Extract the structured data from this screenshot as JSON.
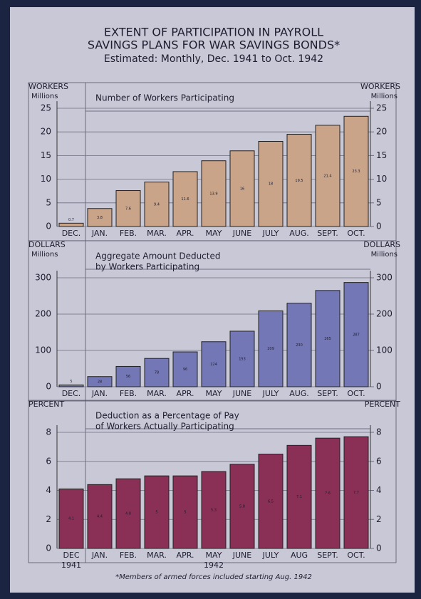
{
  "header": {
    "title": [
      "EXTENT OF PARTICIPATION IN PAYROLL",
      "SAVINGS PLANS FOR WAR SAVINGS BONDS*"
    ],
    "subtitle": "Estimated: Monthly, Dec. 1941 to Oct. 1942"
  },
  "footnote": "*Members of armed forces included starting Aug. 1942",
  "chart_data": [
    {
      "type": "bar",
      "title": [
        "Number of Workers Participating"
      ],
      "y_label": "WORKERS",
      "y_unit": "Millions",
      "y2_label": "WORKERS",
      "y2_unit": "Millions",
      "categories": [
        "DEC.",
        "JAN.",
        "FEB.",
        "MAR.",
        "APR.",
        "MAY",
        "JUNE",
        "JULY",
        "AUG.",
        "SEPT.",
        "OCT."
      ],
      "values": [
        0.7,
        3.8,
        7.6,
        9.4,
        11.6,
        13.9,
        16.0,
        18.0,
        19.5,
        21.4,
        23.3
      ],
      "color": "#c9a488",
      "ylim": [
        0,
        25
      ],
      "yticks": [
        0,
        5,
        10,
        15,
        20,
        25
      ],
      "y2lim": [
        0,
        25
      ],
      "y2ticks": [
        0,
        5,
        10,
        15,
        20,
        25
      ]
    },
    {
      "type": "bar",
      "title": [
        "Aggregate Amount Deducted",
        "by Workers Participating"
      ],
      "y_label": "DOLLARS",
      "y_unit": "Millions",
      "y2_label": "DOLLARS",
      "y2_unit": "Millions",
      "categories": [
        "DEC.",
        "JAN.",
        "FEB.",
        "MAR.",
        "APR.",
        "MAY",
        "JUNE",
        "JULY",
        "AUG.",
        "SEPT.",
        "OCT."
      ],
      "values": [
        5,
        28,
        56,
        78,
        96,
        124,
        153,
        209,
        230,
        265,
        287
      ],
      "color": "#7377b6",
      "ylim": [
        0,
        300
      ],
      "yticks": [
        0,
        100,
        200,
        300
      ],
      "y2lim": [
        0,
        300
      ],
      "y2ticks": [
        0,
        100,
        200,
        300
      ]
    },
    {
      "type": "bar",
      "title": [
        "Deduction as a Percentage of Pay",
        "of Workers Actually Participating"
      ],
      "y_label": "PERCENT",
      "y2_label": "PERCENT",
      "categories": [
        "DEC",
        "JAN.",
        "FEB.",
        "MAR.",
        "APR.",
        "MAY",
        "JUNE",
        "JULY",
        "AUG",
        "SEPT.",
        "OCT."
      ],
      "year_labels": [
        "1941",
        "1942"
      ],
      "values": [
        4.1,
        4.4,
        4.8,
        5.0,
        5.0,
        5.3,
        5.8,
        6.5,
        7.1,
        7.6,
        7.7
      ],
      "color": "#8a2f55",
      "ylim": [
        0,
        8
      ],
      "yticks": [
        0,
        2,
        4,
        6,
        8
      ],
      "y2lim": [
        0,
        8
      ],
      "y2ticks": [
        0,
        2,
        4,
        6,
        8
      ]
    }
  ]
}
